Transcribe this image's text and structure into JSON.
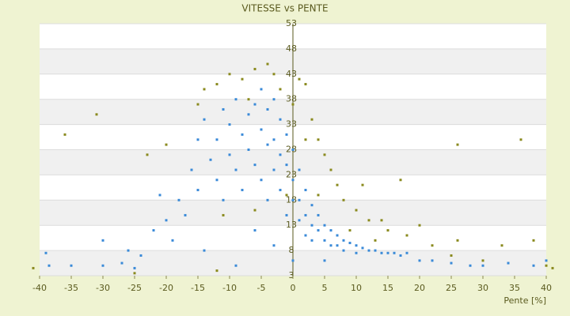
{
  "chart_data": {
    "type": "scatter",
    "title": "VITESSE vs PENTE",
    "x_label": "Pente [%]",
    "xlim": [
      -40,
      40
    ],
    "xticks": [
      -40,
      -35,
      -30,
      -25,
      -20,
      -15,
      -10,
      -5,
      0,
      5,
      10,
      15,
      20,
      25,
      30,
      35,
      40
    ],
    "ylim": [
      3,
      53
    ],
    "yticks": [
      3,
      8,
      13,
      18,
      23,
      28,
      33,
      38,
      43,
      48,
      53
    ],
    "grid": true,
    "series": [
      {
        "color": "#8a8a1e",
        "x": [
          -36,
          -31,
          -23,
          -20,
          -15,
          -14,
          -12,
          -10,
          -8,
          -6,
          -4,
          -3,
          -2,
          0,
          1,
          2,
          3,
          4,
          5,
          6,
          7,
          8,
          10,
          11,
          12,
          14,
          15,
          17,
          18,
          20,
          22,
          25,
          26,
          26,
          30,
          33,
          36,
          38,
          40,
          41,
          -41,
          -25,
          -12,
          -6,
          -1,
          2,
          4,
          -7,
          -11,
          9,
          13
        ],
        "values": [
          31,
          35,
          27,
          29,
          37,
          40,
          41,
          43,
          42,
          44,
          45,
          43,
          40,
          37,
          42,
          41,
          34,
          30,
          27,
          24,
          21,
          18,
          16,
          21,
          14,
          14,
          12,
          22,
          11,
          13,
          9,
          7,
          10,
          29,
          6,
          9,
          30,
          10,
          5,
          4.5,
          4.5,
          3.5,
          4,
          16,
          19,
          30,
          19,
          38,
          15,
          12,
          10
        ]
      },
      {
        "color": "#3a8ad8",
        "x": [
          -39,
          -38.5,
          -35,
          -30,
          -27,
          -26,
          -24,
          -22,
          -20,
          -19,
          -18,
          -17,
          -16,
          -15,
          -15,
          -14,
          -14,
          -13,
          -12,
          -12,
          -11,
          -11,
          -10,
          -10,
          -9,
          -9,
          -8,
          -8,
          -7,
          -7,
          -6,
          -6,
          -6,
          -5,
          -5,
          -5,
          -4,
          -4,
          -4,
          -3,
          -3,
          -3,
          -2,
          -2,
          -2,
          -1,
          -1,
          -1,
          0,
          0,
          0,
          0,
          1,
          1,
          1,
          2,
          2,
          2,
          3,
          3,
          3,
          4,
          4,
          5,
          5,
          6,
          6,
          7,
          7,
          8,
          8,
          9,
          10,
          10,
          11,
          12,
          13,
          14,
          15,
          16,
          17,
          18,
          20,
          22,
          25,
          28,
          30,
          34,
          38,
          40,
          -30,
          -25,
          -21,
          -9,
          -3,
          5
        ],
        "values": [
          7.5,
          5,
          5,
          5,
          5.5,
          8,
          7,
          12,
          14,
          10,
          18,
          15,
          24,
          30,
          20,
          34,
          8,
          26,
          30,
          22,
          36,
          18,
          33,
          27,
          38,
          24,
          31,
          20,
          35,
          28,
          37,
          25,
          12,
          40,
          32,
          22,
          36,
          29,
          18,
          38,
          30,
          24,
          34,
          27,
          20,
          31,
          25,
          15,
          28,
          22,
          18,
          6,
          24,
          18,
          14,
          20,
          15,
          11,
          17,
          13,
          10,
          15,
          12,
          13,
          10,
          12,
          9,
          11,
          9,
          10,
          8,
          9.5,
          9,
          7.5,
          8.5,
          8,
          8,
          7.5,
          7.5,
          7.5,
          7,
          7.5,
          6,
          6,
          5.5,
          5,
          5,
          5.5,
          5,
          6,
          10,
          4.5,
          19,
          5,
          9,
          6
        ]
      }
    ]
  }
}
